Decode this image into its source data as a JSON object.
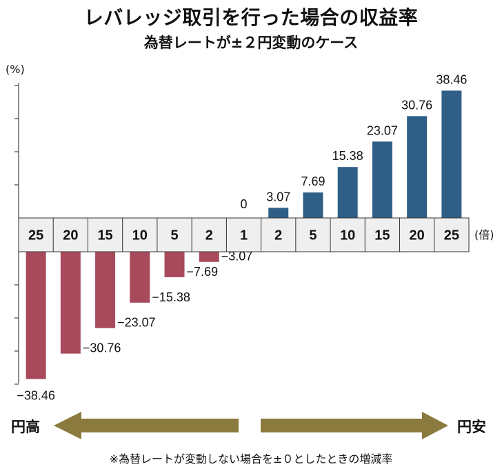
{
  "header": {
    "title": "レバレッジ取引を行った場合の収益率",
    "subtitle": "為替レートが±２円変動のケース"
  },
  "axis": {
    "y_unit": "(%)",
    "x_unit": "(倍)"
  },
  "arrows": {
    "left_label": "円高",
    "right_label": "円安"
  },
  "footnote": "※為替レートが変動しない場合を±０としたときの増減率",
  "colors": {
    "negative": "#a84a5c",
    "positive": "#2f5f87",
    "arrow": "#8b7a3e",
    "tickbox": "#efefef"
  },
  "chart_data": {
    "type": "bar",
    "categories": [
      "25",
      "20",
      "15",
      "10",
      "5",
      "2",
      "1",
      "2",
      "5",
      "10",
      "15",
      "20",
      "25"
    ],
    "values": [
      -38.46,
      -30.76,
      -23.07,
      -15.38,
      -7.69,
      -3.07,
      0,
      3.07,
      7.69,
      15.38,
      23.07,
      30.76,
      38.46
    ],
    "labels": [
      "−38.46",
      "−30.76",
      "−23.07",
      "−15.38",
      "−7.69",
      "−3.07",
      "0",
      "3.07",
      "7.69",
      "15.38",
      "23.07",
      "30.76",
      "38.46"
    ],
    "ylabel": "(%)",
    "xlabel": "(倍)",
    "ylim": [
      -40,
      40
    ],
    "ytick_step": 10,
    "grid": false,
    "legend": "none"
  }
}
